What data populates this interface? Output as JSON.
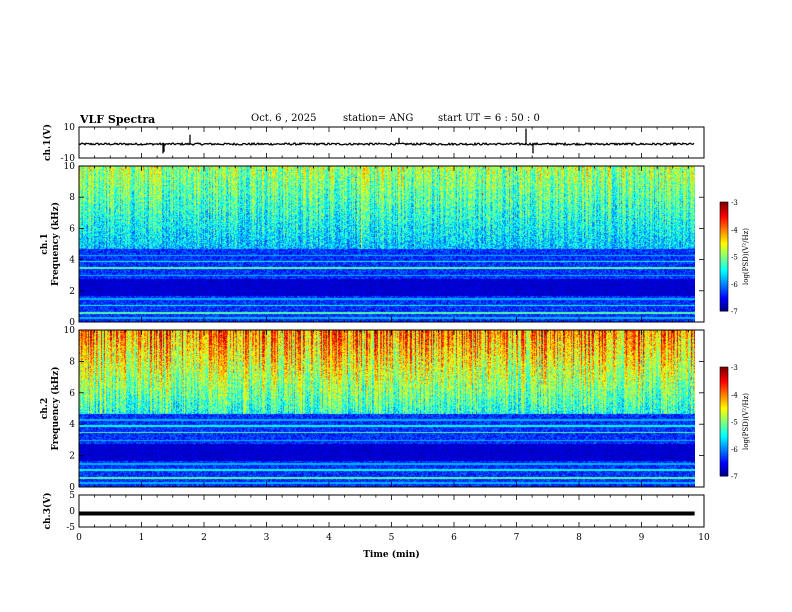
{
  "header": {
    "title": "VLF Spectra",
    "date": "Oct. 6  , 2025",
    "station": "station= ANG",
    "start": "start  UT  =   6  : 50 : 0"
  },
  "colorbar": {
    "ticks": [
      "-3",
      "-4",
      "-5",
      "-6",
      "-7"
    ],
    "label": "log(PSD)(V²/Hz)",
    "range": [
      -7,
      -3
    ]
  },
  "chart_data": [
    {
      "type": "line",
      "title": "ch.1(V)",
      "ylabel": "ch.1(V)",
      "ylim": [
        -10,
        10
      ],
      "yticks": [
        "10",
        "-10"
      ],
      "description_series": "waveform amplitude around -1 V with spikes",
      "x_range_min": [
        0,
        9.85
      ]
    },
    {
      "type": "heatmap",
      "ylabel": "ch.1 Frequency (kHz)",
      "ylim": [
        0,
        10
      ],
      "yticks": [
        "10",
        "8",
        "6",
        "4",
        "2",
        "0"
      ],
      "x_range_min": [
        0,
        9.85
      ]
    },
    {
      "type": "heatmap",
      "ylabel": "ch.2 Frequency (kHz)",
      "ylim": [
        0,
        10
      ],
      "yticks": [
        "10",
        "8",
        "6",
        "4",
        "2",
        "0"
      ],
      "x_range_min": [
        0,
        9.85
      ]
    },
    {
      "type": "line",
      "ylabel": "ch.3(V)",
      "ylim": [
        -5,
        5
      ],
      "yticks": [
        "5",
        "0",
        "-5"
      ],
      "value": -0.8,
      "x_range_min": [
        0,
        9.85
      ]
    }
  ],
  "xaxis": {
    "label": "Time  (min)",
    "ticks": [
      "0",
      "1",
      "2",
      "3",
      "4",
      "5",
      "6",
      "7",
      "8",
      "9",
      "10"
    ],
    "xlim": [
      0,
      10
    ]
  },
  "labels": {
    "ch1_v": "ch.1(V)",
    "ch1_freq_a": "ch.1",
    "ch1_freq_b": "Frequency (kHz)",
    "ch2_freq_a": "ch.2",
    "ch2_freq_b": "Frequency (kHz)",
    "ch3_v": "ch.3(V)"
  }
}
